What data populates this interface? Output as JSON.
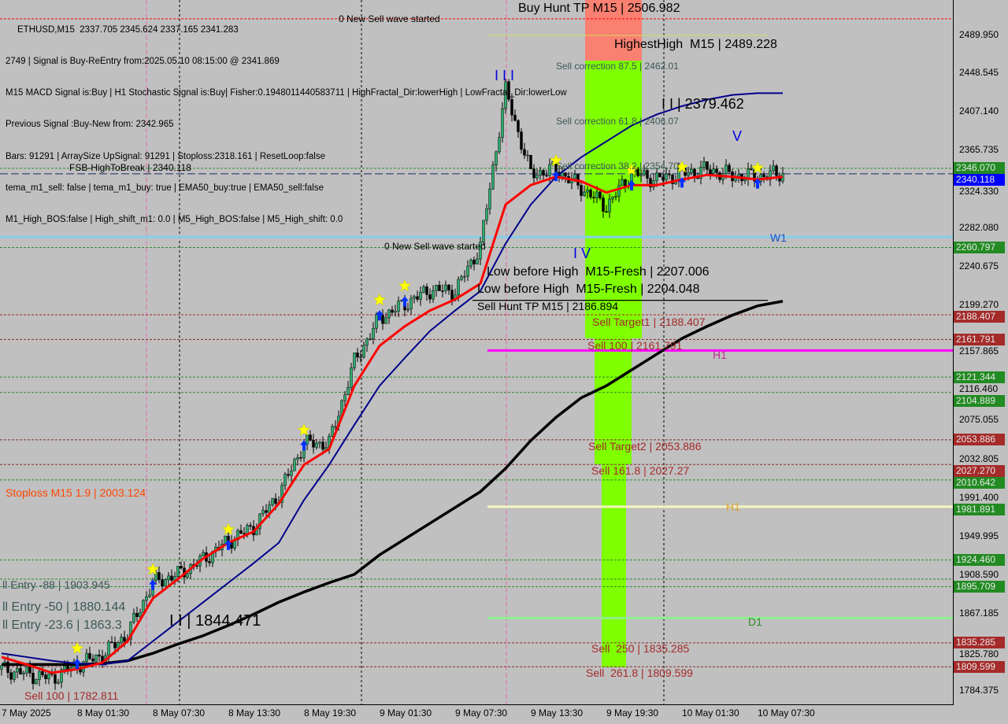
{
  "header": {
    "line1": "ETHUSD,M15  2337.705 2345.624 2337.165 2341.283",
    "line2": "2749 | Signal is Buy-ReEntry from:2025.05.10 08:15:00 @ 2341.869",
    "line3": "M15 MACD Signal is:Buy | H1 Stochastic Signal is:Buy| Fisher:0.1948011440583711 | HighFractal_Dir:lowerHigh | LowFractal_Dir:lowerLow",
    "line4": "Previous Signal :Buy-New from: 2342.965",
    "line5": "Bars: 91291 | ArraySize UpSignal: 91291 | Stoploss:2318.161 | ResetLoop:false",
    "line6": "tema_m1_sell: false | tema_m1_buy: true | EMA50_buy:true | EMA50_sell:false",
    "line7": "M1_High_BOS:false | High_shift_m1: 0.0 | M5_High_BOS:false | M5_High_shift: 0.0"
  },
  "labels": {
    "new_sell_wave_1": "0 New Sell wave started",
    "new_sell_wave_2": "0 New Sell wave started",
    "buy_hunt_tp": "Buy Hunt TP M15 | 2506.982",
    "highest_high": "HighestHigh  M15 | 2489.228",
    "sell_corr_875": "Sell correction 87.5 | 2462.01",
    "sell_corr_618": "Sell correction 61.8 | 2406.07",
    "sell_corr_382": "Sell correction 38.2 | 2354.70",
    "wave_ii_top": "I I | 2379.462",
    "wave_v": "V",
    "wave_iii": "I I I",
    "wave_iv": "I V",
    "fsb": "FSB-HighToBreak | 2340.118",
    "w1": "W1",
    "low_before_high_1": "Low before High  M15-Fresh | 2207.006",
    "low_before_high_2": "Low before High  M15-Fresh | 2204.048",
    "sell_hunt_tp": "Sell Hunt TP M15 | 2186.894",
    "sell_target1": "Sell Target1 | 2188.407",
    "sell_100": "Sell 100 | 2161.791",
    "h1_magenta": "H1",
    "sell_target2": "Sell Target2 | 2053.886",
    "sell_1618": "Sell 161.8 | 2027.27",
    "stoploss": "Stoploss M15 1.9 | 2003.124",
    "h1_yellow": "H1",
    "entry_88": "ll Entry -88 | 1903.945",
    "entry_50": "ll Entry -50 | 1880.144",
    "entry_236": "ll Entry -23.6 | 1863.3",
    "wave_ii_bottom": "I I | 1844.471",
    "d1": "D1",
    "sell_250": "Sell  250 | 1835.285",
    "sell_2618": "Sell  261.8 | 1809.599",
    "sell_100_low": "Sell 100 | 1782.811"
  },
  "chart_data": {
    "type": "line",
    "symbol": "ETHUSD",
    "timeframe": "M15",
    "ylim": [
      1770,
      2530
    ],
    "grid": false,
    "y_ticks": [
      "2489.950",
      "2448.545",
      "2407.140",
      "2365.735",
      "2324.330",
      "2282.080",
      "2240.675",
      "2199.270",
      "2157.865",
      "2116.460",
      "2075.055",
      "2032.805",
      "1991.400",
      "1949.995",
      "1908.590",
      "1867.185",
      "1825.780",
      "1784.375"
    ],
    "x_ticks": [
      "7 May 2025",
      "8 May 01:30",
      "8 May 07:30",
      "8 May 13:30",
      "8 May 19:30",
      "9 May 01:30",
      "9 May 07:30",
      "9 May 13:30",
      "9 May 19:30",
      "10 May 01:30",
      "10 May 07:30"
    ],
    "x": [
      "7 May 19:30",
      "7 May 21:30",
      "7 May 23:30",
      "8 May 01:30",
      "8 May 03:30",
      "8 May 05:30",
      "8 May 07:30",
      "8 May 09:30",
      "8 May 11:30",
      "8 May 13:30",
      "8 May 15:30",
      "8 May 17:30",
      "8 May 19:30",
      "8 May 21:30",
      "8 May 23:30",
      "9 May 01:30",
      "9 May 03:30",
      "9 May 05:30",
      "9 May 07:30",
      "9 May 09:30",
      "9 May 11:30",
      "9 May 13:30",
      "9 May 15:30",
      "9 May 17:30",
      "9 May 19:30",
      "9 May 21:30",
      "9 May 23:30",
      "10 May 01:30",
      "10 May 03:30",
      "10 May 05:30",
      "10 May 07:30",
      "10 May 08:15"
    ],
    "price_close": [
      1807,
      1802,
      1797,
      1812,
      1822,
      1845,
      1900,
      1909,
      1925,
      1945,
      1960,
      1995,
      2050,
      2050,
      2138,
      2185,
      2200,
      2215,
      2214,
      2262,
      2430,
      2340,
      2345,
      2325,
      2305,
      2341,
      2334,
      2340,
      2345,
      2338,
      2337,
      2341
    ],
    "ma_fast_red": [
      1820,
      1812,
      1803,
      1807,
      1814,
      1837,
      1883,
      1904,
      1926,
      1943,
      1955,
      1985,
      2027,
      2044,
      2112,
      2155,
      2176,
      2193,
      2205,
      2222,
      2307,
      2328,
      2337,
      2332,
      2320,
      2328,
      2328,
      2334,
      2339,
      2337,
      2334,
      2337
    ],
    "ma_mid_blue": [
      1824,
      1820,
      1816,
      1813,
      1812,
      1816,
      1837,
      1858,
      1879,
      1900,
      1921,
      1943,
      1989,
      2027,
      2070,
      2112,
      2142,
      2171,
      2193,
      2214,
      2265,
      2307,
      2337,
      2358,
      2375,
      2392,
      2404,
      2413,
      2420,
      2425,
      2427,
      2427
    ],
    "ma_slow_black": [
      1812,
      1812,
      1812,
      1812,
      1813,
      1816,
      1824,
      1834,
      1843,
      1854,
      1866,
      1879,
      1890,
      1900,
      1909,
      1930,
      1947,
      1964,
      1981,
      1998,
      2023,
      2053,
      2078,
      2099,
      2112,
      2129,
      2146,
      2163,
      2176,
      2188,
      2198,
      2203
    ],
    "buy_signals": [
      [
        "8 May 01:30",
        1820
      ],
      [
        "8 May 07:30",
        1905
      ],
      [
        "8 May 13:30",
        1948
      ],
      [
        "8 May 19:30",
        2055
      ],
      [
        "9 May 01:30",
        2195
      ],
      [
        "9 May 03:30",
        2210
      ],
      [
        "9 May 15:30",
        2345
      ],
      [
        "9 May 21:30",
        2335
      ],
      [
        "10 May 01:30",
        2338
      ],
      [
        "10 May 07:30",
        2337
      ]
    ],
    "levels": [
      {
        "price": 2340.118,
        "style": "dash",
        "color": "#1a2a6a"
      },
      {
        "price": 2346.07,
        "style": "dot",
        "color": "#2e8b2e"
      },
      {
        "price": 2272.0,
        "style": "solid",
        "color": "#87ceeb"
      },
      {
        "price": 2260.797,
        "style": "dot",
        "color": "#2e8b2e"
      },
      {
        "price": 2188.407,
        "style": "dot",
        "color": "#b22222"
      },
      {
        "price": 2161.791,
        "style": "dot",
        "color": "#8b2a2a"
      },
      {
        "price": 2121.344,
        "style": "dot",
        "color": "#2e8b2e"
      },
      {
        "price": 2104.889,
        "style": "dot",
        "color": "#2e8b2e"
      },
      {
        "price": 2053.886,
        "style": "dot",
        "color": "#8b2a2a"
      },
      {
        "price": 2027.27,
        "style": "dot",
        "color": "#8b2a2a"
      },
      {
        "price": 2010.642,
        "style": "dot",
        "color": "#2e8b2e"
      },
      {
        "price": 1924.46,
        "style": "dot",
        "color": "#2e8b2e"
      },
      {
        "price": 1903.945,
        "style": "dot",
        "color": "#2e8b2e"
      },
      {
        "price": 1895.709,
        "style": "dot",
        "color": "#2e8b2e"
      },
      {
        "price": 1835.285,
        "style": "dot",
        "color": "#8b2a2a"
      },
      {
        "price": 1809.599,
        "style": "dot",
        "color": "#8b2a2a"
      },
      {
        "price": 2506.982,
        "style": "dot",
        "color": "#ff0000"
      }
    ],
    "price_tags": [
      {
        "text": "2346.070",
        "color": "#228b22"
      },
      {
        "text": "2340.118",
        "color": "#0000ff"
      },
      {
        "text": "2260.797",
        "color": "#228b22"
      },
      {
        "text": "2188.407",
        "color": "#a52a2a"
      },
      {
        "text": "2161.791",
        "color": "#a52a2a"
      },
      {
        "text": "2121.344",
        "color": "#228b22"
      },
      {
        "text": "2104.889",
        "color": "#228b22"
      },
      {
        "text": "2053.886",
        "color": "#a52a2a"
      },
      {
        "text": "2027.270",
        "color": "#a52a2a"
      },
      {
        "text": "2010.642",
        "color": "#228b22"
      },
      {
        "text": "1981.891",
        "color": "#228b22"
      },
      {
        "text": "1924.460",
        "color": "#228b22"
      },
      {
        "text": "1895.709",
        "color": "#228b22"
      },
      {
        "text": "1835.285",
        "color": "#a52a2a"
      },
      {
        "text": "1809.599",
        "color": "#a52a2a"
      }
    ],
    "colors": {
      "sell_zone_top": "#fa8072",
      "sell_zone": "#7fff00",
      "magenta_h1": "#ff00ff",
      "yellow_h1": "#f5f5c0",
      "d1": "#90ee90",
      "w1": "#87ceeb"
    }
  }
}
